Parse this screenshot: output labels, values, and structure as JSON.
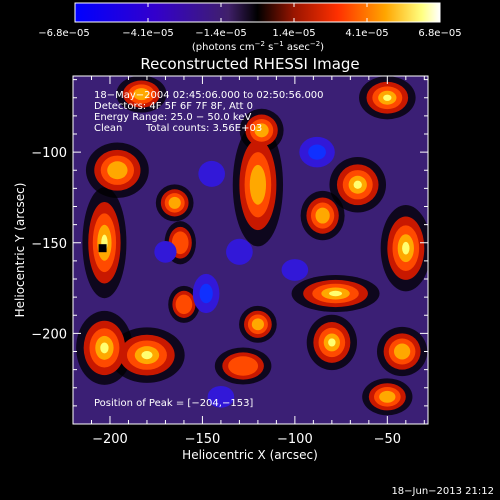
{
  "chart_data": {
    "type": "heatmap",
    "title": "Reconstructed RHESSI Image",
    "xlabel": "Heliocentric X (arcsec)",
    "ylabel": "Heliocentric Y (arcsec)",
    "xlim": [
      -220,
      -28
    ],
    "ylim": [
      -250,
      -58
    ],
    "x_ticks": [
      -200,
      -150,
      -100,
      -50
    ],
    "x_tick_labels": [
      "−200",
      "−150",
      "−100",
      "−50"
    ],
    "y_ticks": [
      -100,
      -150,
      -200
    ],
    "y_tick_labels": [
      "−100",
      "−150",
      "−200"
    ],
    "colorbar": {
      "range": [
        -6.8e-05,
        6.8e-05
      ],
      "tick_labels": [
        "−6.8e−05",
        "−4.1e−05",
        "−1.4e−05",
        "1.4e−05",
        "4.1e−05",
        "6.8e−05"
      ],
      "unit_main": "(photons cm",
      "unit_exp1": "−2",
      "unit_mid": " s",
      "unit_exp2": "−1",
      "unit_tail": " asec",
      "unit_exp3": "−2",
      "unit_close": ")"
    },
    "annotations": {
      "time": "18−May−2004 02:45:06.000 to 02:50:56.000",
      "detectors": "Detectors: 4F 5F 6F 7F 8F, Att 0",
      "energy": "Energy Range: 25.0 − 50.0 keV",
      "clean_label": "Clean",
      "counts": "Total counts: 3.56E+03",
      "peak": "Position of Peak = [−204,−153]"
    },
    "peak_position": [
      -204,
      -153
    ],
    "footer_date": "18−Jun−2013 21:12",
    "bright_regions": [
      {
        "x": -203,
        "y": -150,
        "sx": 7,
        "sy": 18,
        "a": 1.0
      },
      {
        "x": -196,
        "y": -110,
        "sx": 10,
        "sy": 9,
        "a": 0.75
      },
      {
        "x": -203,
        "y": -208,
        "sx": 9,
        "sy": 12,
        "a": 0.95
      },
      {
        "x": -180,
        "y": -212,
        "sx": 12,
        "sy": 9,
        "a": 0.8
      },
      {
        "x": -183,
        "y": -68,
        "sx": 8,
        "sy": 6,
        "a": 0.6
      },
      {
        "x": -165,
        "y": -128,
        "sx": 6,
        "sy": 6,
        "a": 0.75
      },
      {
        "x": -162,
        "y": -150,
        "sx": 5,
        "sy": 7,
        "a": 0.55
      },
      {
        "x": -160,
        "y": -184,
        "sx": 5,
        "sy": 6,
        "a": 0.5
      },
      {
        "x": -120,
        "y": -118,
        "sx": 8,
        "sy": 20,
        "a": 0.7
      },
      {
        "x": -118,
        "y": -88,
        "sx": 7,
        "sy": 7,
        "a": 0.6
      },
      {
        "x": -120,
        "y": -195,
        "sx": 6,
        "sy": 6,
        "a": 0.6
      },
      {
        "x": -128,
        "y": -218,
        "sx": 9,
        "sy": 6,
        "a": 0.5
      },
      {
        "x": -85,
        "y": -135,
        "sx": 7,
        "sy": 8,
        "a": 0.6
      },
      {
        "x": -66,
        "y": -118,
        "sx": 9,
        "sy": 9,
        "a": 0.9
      },
      {
        "x": -50,
        "y": -70,
        "sx": 9,
        "sy": 7,
        "a": 0.8
      },
      {
        "x": -40,
        "y": -153,
        "sx": 8,
        "sy": 14,
        "a": 0.95
      },
      {
        "x": -78,
        "y": -178,
        "sx": 14,
        "sy": 6,
        "a": 0.85
      },
      {
        "x": -80,
        "y": -205,
        "sx": 8,
        "sy": 9,
        "a": 0.85
      },
      {
        "x": -42,
        "y": -210,
        "sx": 8,
        "sy": 8,
        "a": 0.75
      },
      {
        "x": -50,
        "y": -235,
        "sx": 8,
        "sy": 6,
        "a": 0.6
      }
    ],
    "dark_regions": [
      {
        "x": -88,
        "y": -100,
        "sx": 8,
        "sy": 7,
        "a": 0.9
      },
      {
        "x": -148,
        "y": -178,
        "sx": 6,
        "sy": 9,
        "a": 1.0
      },
      {
        "x": -145,
        "y": -112,
        "sx": 6,
        "sy": 6,
        "a": 0.6
      },
      {
        "x": -130,
        "y": -155,
        "sx": 6,
        "sy": 6,
        "a": 0.5
      },
      {
        "x": -100,
        "y": -165,
        "sx": 6,
        "sy": 5,
        "a": 0.5
      },
      {
        "x": -170,
        "y": -155,
        "sx": 5,
        "sy": 5,
        "a": 0.5
      },
      {
        "x": -140,
        "y": -235,
        "sx": 6,
        "sy": 5,
        "a": 0.5
      }
    ]
  }
}
